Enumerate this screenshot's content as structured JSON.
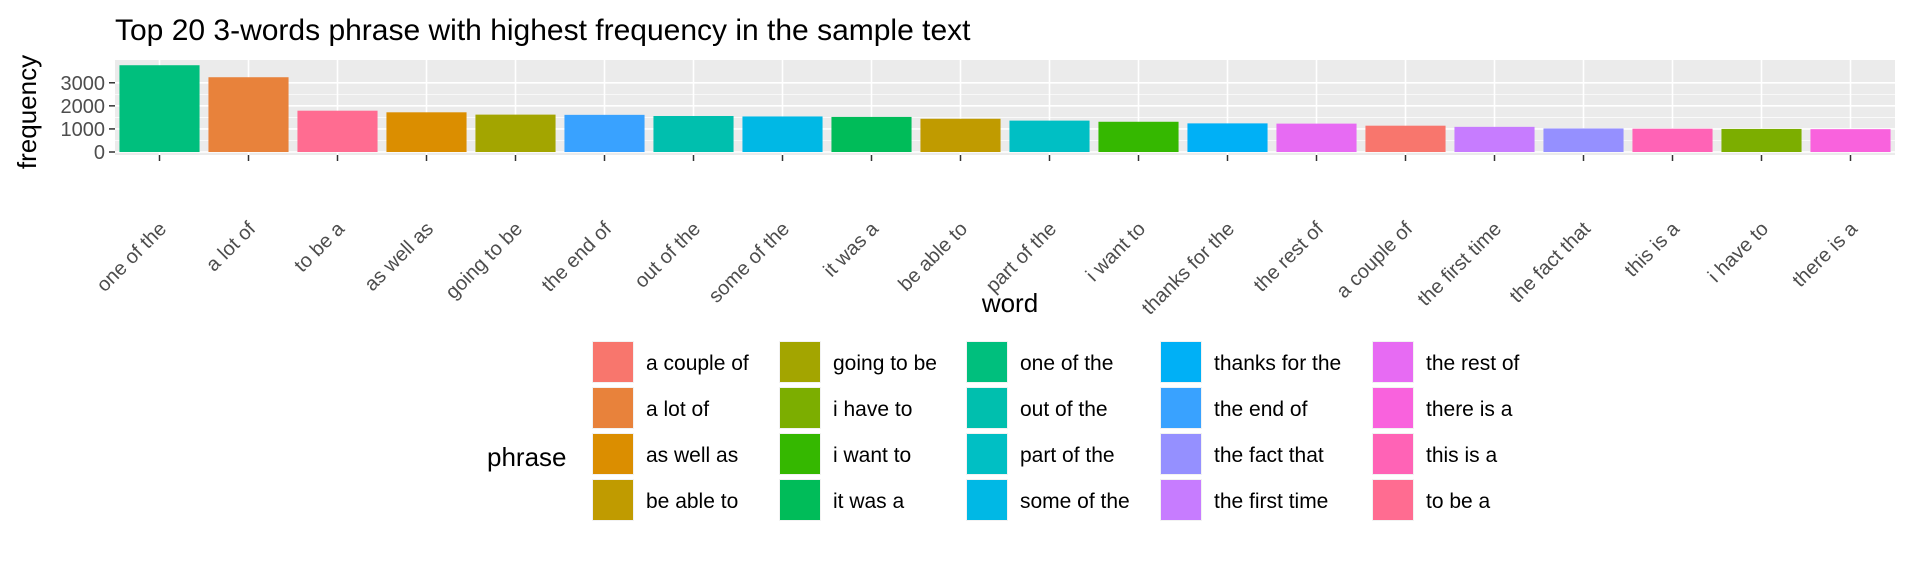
{
  "chart_data": {
    "type": "bar",
    "title": "Top 20 3-words phrase with highest frequency in the sample text",
    "xlabel": "word",
    "ylabel": "frequency",
    "ylim": [
      0,
      3900
    ],
    "y_ticks": [
      0,
      1000,
      2000,
      3000
    ],
    "y_tick_labels": [
      "0",
      "1000",
      "2000",
      "3000"
    ],
    "categories": [
      "one of the",
      "a lot of",
      "to be a",
      "as well as",
      "going to be",
      "the end of",
      "out of the",
      "some of the",
      "it was a",
      "be able to",
      "part of the",
      "i want to",
      "thanks for the",
      "the rest of",
      "a couple of",
      "the first time",
      "the fact that",
      "this is a",
      "i have to",
      "there is a"
    ],
    "values": [
      3760,
      3240,
      1790,
      1720,
      1620,
      1610,
      1560,
      1540,
      1520,
      1440,
      1360,
      1310,
      1240,
      1230,
      1140,
      1090,
      1020,
      1010,
      1000,
      990
    ],
    "colors": [
      "#00BF7D",
      "#E8823B",
      "#FF6C91",
      "#DB8E00",
      "#A3A500",
      "#39A2FF",
      "#00BFAE",
      "#00B8E5",
      "#00BC59",
      "#C09B00",
      "#00BFC4",
      "#35B800",
      "#00B0F6",
      "#E76BF3",
      "#F8766D",
      "#C77CFF",
      "#9590FF",
      "#FF63B6",
      "#7CAE00",
      "#F962DD"
    ],
    "grid": true,
    "legend": {
      "title": "phrase",
      "placement": "bottom",
      "columns": [
        [
          {
            "label": "a couple of",
            "color": "#F8766D"
          },
          {
            "label": "a lot of",
            "color": "#E8823B"
          },
          {
            "label": "as well as",
            "color": "#DB8E00"
          },
          {
            "label": "be able to",
            "color": "#C09B00"
          }
        ],
        [
          {
            "label": "going to be",
            "color": "#A3A500"
          },
          {
            "label": "i have to",
            "color": "#7CAE00"
          },
          {
            "label": "i want to",
            "color": "#35B800"
          },
          {
            "label": "it was a",
            "color": "#00BC59"
          }
        ],
        [
          {
            "label": "one of the",
            "color": "#00BF7D"
          },
          {
            "label": "out of the",
            "color": "#00BFAE"
          },
          {
            "label": "part of the",
            "color": "#00BFC4"
          },
          {
            "label": "some of the",
            "color": "#00B8E5"
          }
        ],
        [
          {
            "label": "thanks for the",
            "color": "#00B0F6"
          },
          {
            "label": "the end of",
            "color": "#39A2FF"
          },
          {
            "label": "the fact that",
            "color": "#9590FF"
          },
          {
            "label": "the first time",
            "color": "#C77CFF"
          }
        ],
        [
          {
            "label": "the rest of",
            "color": "#E76BF3"
          },
          {
            "label": "there is a",
            "color": "#F962DD"
          },
          {
            "label": "this is a",
            "color": "#FF63B6"
          },
          {
            "label": "to be a",
            "color": "#FF6C91"
          }
        ]
      ]
    }
  }
}
